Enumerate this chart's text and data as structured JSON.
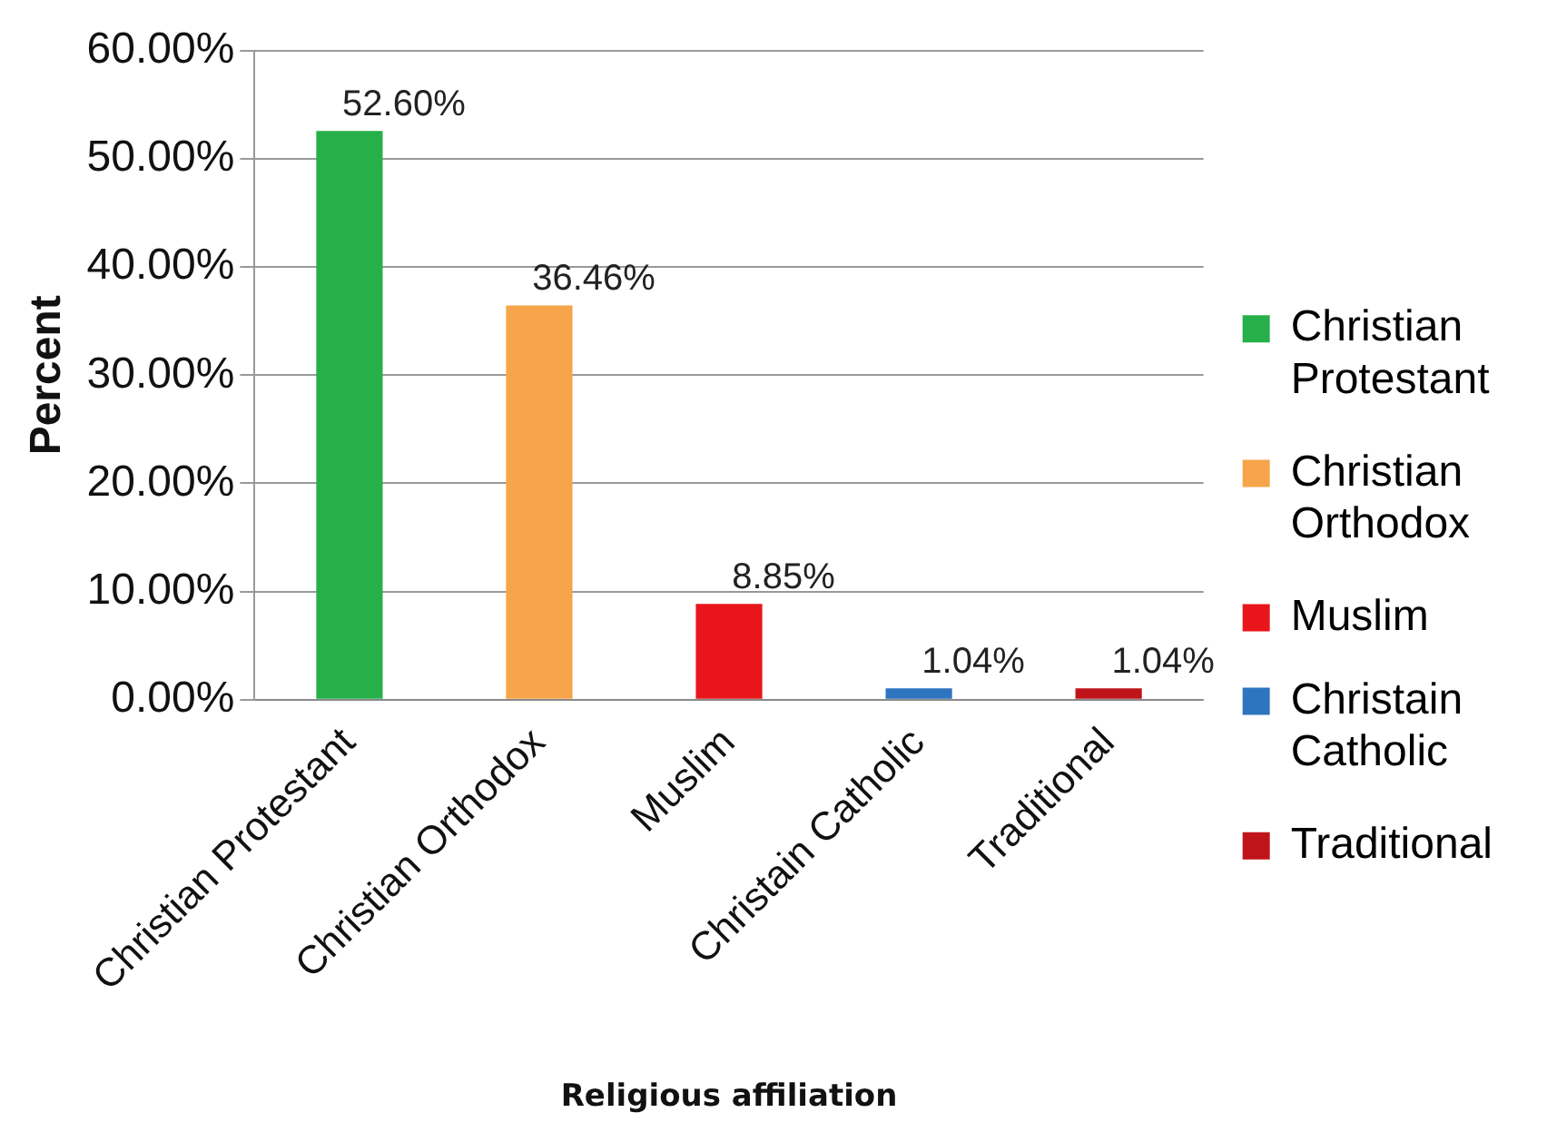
{
  "chart_data": {
    "type": "bar",
    "xlabel": "Religious affiliation",
    "ylabel": "Percent",
    "categories": [
      "Christian Protestant",
      "Christian Orthodox",
      "Muslim",
      "Christain Catholic",
      "Traditional"
    ],
    "series": [
      {
        "name": "Christian Protestant",
        "color": "#27b04a",
        "values": [
          52.6,
          null,
          null,
          null,
          null
        ],
        "value_labels": [
          "52.60%",
          null,
          null,
          null,
          null
        ]
      },
      {
        "name": "Christian Orthodox",
        "color": "#f7a54a",
        "values": [
          null,
          36.46,
          null,
          null,
          null
        ],
        "value_labels": [
          null,
          "36.46%",
          null,
          null,
          null
        ]
      },
      {
        "name": "Muslim",
        "color": "#e8161b",
        "values": [
          null,
          null,
          8.85,
          null,
          null
        ],
        "value_labels": [
          null,
          null,
          "8.85%",
          null,
          null
        ]
      },
      {
        "name": "Christain Catholic",
        "color": "#2e75c0",
        "values": [
          null,
          null,
          null,
          1.04,
          null
        ],
        "value_labels": [
          null,
          null,
          null,
          "1.04%",
          null
        ]
      },
      {
        "name": "Traditional",
        "color": "#c0141b",
        "values": [
          null,
          null,
          null,
          null,
          1.04
        ],
        "value_labels": [
          null,
          null,
          null,
          null,
          "1.04%"
        ]
      }
    ],
    "ylim": [
      0,
      60
    ],
    "yticks": [
      {
        "value": 0,
        "label": "0.00%"
      },
      {
        "value": 10,
        "label": "10.00%"
      },
      {
        "value": 20,
        "label": "20.00%"
      },
      {
        "value": 30,
        "label": "30.00%"
      },
      {
        "value": 40,
        "label": "40.00%"
      },
      {
        "value": 50,
        "label": "50.00%"
      },
      {
        "value": 60,
        "label": "60.00%"
      }
    ],
    "grid": "y",
    "legend": "right"
  }
}
